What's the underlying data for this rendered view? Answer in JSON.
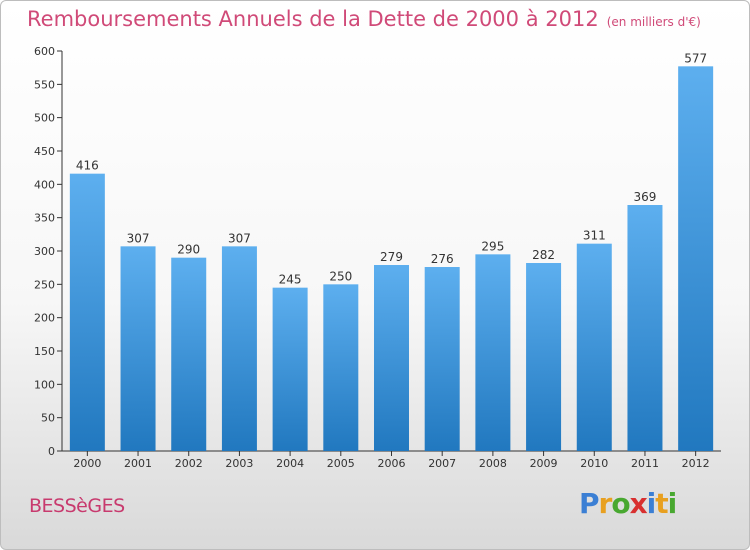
{
  "header": {
    "title": "Remboursements Annuels de la Dette de 2000 à 2012",
    "subtitle": "(en milliers d'€)"
  },
  "footer": {
    "commune": "BESSèGES",
    "logo_text": "Proxiti",
    "logo_colors": [
      "#3b7fd4",
      "#e8a020",
      "#48a830",
      "#d83030",
      "#3b7fd4",
      "#e8a020",
      "#48a830"
    ]
  },
  "colors": {
    "bar_top": "#5dafef",
    "bar_bottom": "#2178bf",
    "title": "#d04a78"
  },
  "chart_data": {
    "type": "bar",
    "title": "Remboursements Annuels de la Dette de 2000 à 2012",
    "subtitle": "(en milliers d'€)",
    "categories": [
      "2000",
      "2001",
      "2002",
      "2003",
      "2004",
      "2005",
      "2006",
      "2007",
      "2008",
      "2009",
      "2010",
      "2011",
      "2012"
    ],
    "values": [
      416,
      307,
      290,
      307,
      245,
      250,
      279,
      276,
      295,
      282,
      311,
      369,
      577
    ],
    "ylim": [
      0,
      600
    ],
    "yticks": [
      0,
      50,
      100,
      150,
      200,
      250,
      300,
      350,
      400,
      450,
      500,
      550,
      600
    ],
    "grid": false,
    "data_labels": true
  }
}
